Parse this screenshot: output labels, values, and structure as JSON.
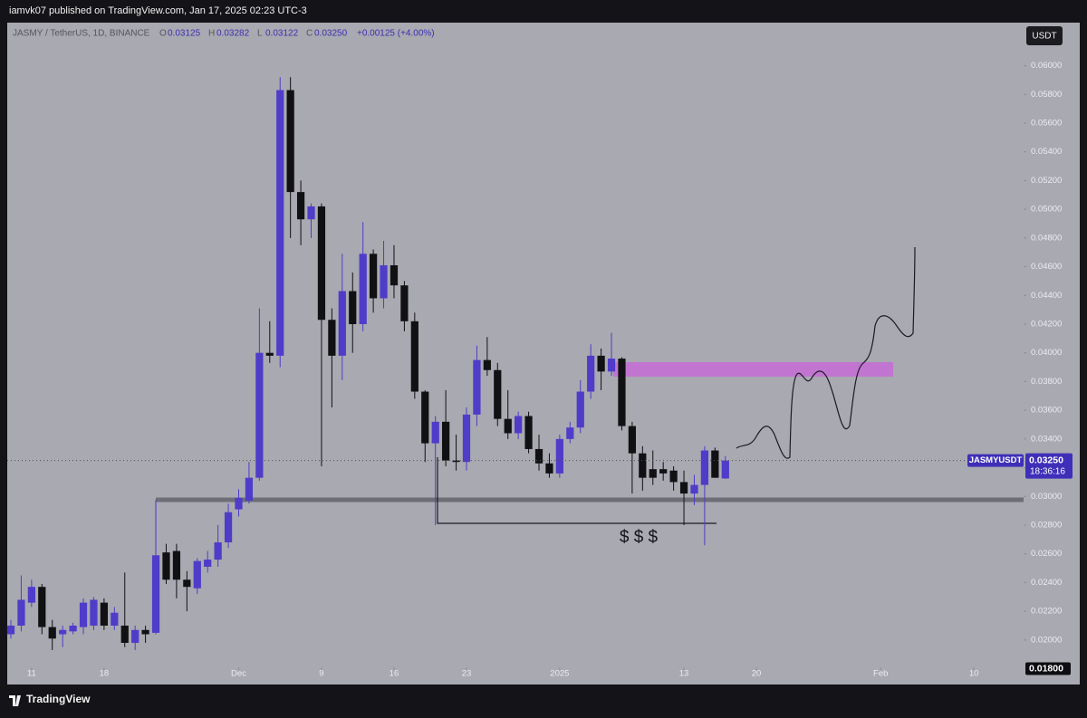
{
  "header": {
    "text": "iamvk07 published on TradingView.com, Jan 17, 2025 02:23 UTC-3"
  },
  "footer": {
    "brand": "TradingView"
  },
  "chart_data": {
    "type": "candlestick",
    "legend": {
      "symbol": "JASMY / TetherUS, 1D, BINANCE",
      "labels": [
        "O",
        "H",
        "L",
        "C"
      ],
      "change": "+0.00125 (+4.00%)"
    },
    "currency_button": "USDT",
    "last_price": {
      "value": 0.0325,
      "label": "0.03250",
      "symbol": "JASMYUSDT",
      "countdown": "18:36:16"
    },
    "price_marker": {
      "value": 0.018,
      "label": "0.01800"
    },
    "annotation": "$ $ $",
    "up_color": "#4f3cc9",
    "down_color": "#111114",
    "ylim": [
      0.0169,
      0.063
    ],
    "xlim": [
      -1.05,
      97.8
    ],
    "yticks": [
      {
        "value": 0.02,
        "label": "0.02000"
      },
      {
        "value": 0.022,
        "label": "0.02200"
      },
      {
        "value": 0.024,
        "label": "0.02400"
      },
      {
        "value": 0.026,
        "label": "0.02600"
      },
      {
        "value": 0.028,
        "label": "0.02800"
      },
      {
        "value": 0.03,
        "label": "0.03000"
      },
      {
        "value": 0.032,
        "label": "0.03200"
      },
      {
        "value": 0.034,
        "label": "0.03400"
      },
      {
        "value": 0.036,
        "label": "0.03600"
      },
      {
        "value": 0.038,
        "label": "0.03800"
      },
      {
        "value": 0.04,
        "label": "0.04000"
      },
      {
        "value": 0.042,
        "label": "0.04200"
      },
      {
        "value": 0.044,
        "label": "0.04400"
      },
      {
        "value": 0.046,
        "label": "0.04600"
      },
      {
        "value": 0.048,
        "label": "0.04800"
      },
      {
        "value": 0.05,
        "label": "0.05000"
      },
      {
        "value": 0.052,
        "label": "0.05200"
      },
      {
        "value": 0.054,
        "label": "0.05400"
      },
      {
        "value": 0.056,
        "label": "0.05600"
      },
      {
        "value": 0.058,
        "label": "0.05800"
      },
      {
        "value": 0.06,
        "label": "0.06000"
      }
    ],
    "xticks": [
      {
        "value": 2,
        "label": "11"
      },
      {
        "value": 9,
        "label": "18"
      },
      {
        "value": 22,
        "label": "Dec"
      },
      {
        "value": 30,
        "label": "9"
      },
      {
        "value": 37,
        "label": "16"
      },
      {
        "value": 44,
        "label": "23"
      },
      {
        "value": 53,
        "label": "2025"
      },
      {
        "value": 65,
        "label": "13"
      },
      {
        "value": 72,
        "label": "20"
      },
      {
        "value": 84,
        "label": "Feb"
      },
      {
        "value": 93,
        "label": "10"
      }
    ],
    "candles": [
      {
        "open": 0.0204,
        "high": 0.0214,
        "low": 0.0201,
        "close": 0.021
      },
      {
        "open": 0.021,
        "high": 0.0245,
        "low": 0.0206,
        "close": 0.0228
      },
      {
        "open": 0.0226,
        "high": 0.0242,
        "low": 0.0223,
        "close": 0.0237
      },
      {
        "open": 0.0237,
        "high": 0.0239,
        "low": 0.0204,
        "close": 0.0209
      },
      {
        "open": 0.0209,
        "high": 0.0214,
        "low": 0.0193,
        "close": 0.0201
      },
      {
        "open": 0.0204,
        "high": 0.021,
        "low": 0.0195,
        "close": 0.0207
      },
      {
        "open": 0.0206,
        "high": 0.0212,
        "low": 0.0204,
        "close": 0.021
      },
      {
        "open": 0.0209,
        "high": 0.0229,
        "low": 0.0204,
        "close": 0.0226
      },
      {
        "open": 0.021,
        "high": 0.023,
        "low": 0.0207,
        "close": 0.0228
      },
      {
        "open": 0.0226,
        "high": 0.0229,
        "low": 0.0207,
        "close": 0.021
      },
      {
        "open": 0.021,
        "high": 0.0223,
        "low": 0.0207,
        "close": 0.0219
      },
      {
        "open": 0.021,
        "high": 0.0247,
        "low": 0.0195,
        "close": 0.0198
      },
      {
        "open": 0.0198,
        "high": 0.021,
        "low": 0.0193,
        "close": 0.0207
      },
      {
        "open": 0.0207,
        "high": 0.021,
        "low": 0.0198,
        "close": 0.0204
      },
      {
        "open": 0.0205,
        "high": 0.0295,
        "low": 0.0204,
        "close": 0.0259
      },
      {
        "open": 0.0261,
        "high": 0.0267,
        "low": 0.0239,
        "close": 0.0242
      },
      {
        "open": 0.0262,
        "high": 0.0267,
        "low": 0.0229,
        "close": 0.0242
      },
      {
        "open": 0.0242,
        "high": 0.0248,
        "low": 0.022,
        "close": 0.0237
      },
      {
        "open": 0.0236,
        "high": 0.0257,
        "low": 0.0232,
        "close": 0.0255
      },
      {
        "open": 0.0251,
        "high": 0.0262,
        "low": 0.0247,
        "close": 0.0256
      },
      {
        "open": 0.0256,
        "high": 0.028,
        "low": 0.0251,
        "close": 0.0268
      },
      {
        "open": 0.0268,
        "high": 0.0295,
        "low": 0.0264,
        "close": 0.0289
      },
      {
        "open": 0.0291,
        "high": 0.0305,
        "low": 0.0286,
        "close": 0.0299
      },
      {
        "open": 0.0297,
        "high": 0.0324,
        "low": 0.0295,
        "close": 0.0313
      },
      {
        "open": 0.0313,
        "high": 0.0431,
        "low": 0.0311,
        "close": 0.04
      },
      {
        "open": 0.04,
        "high": 0.0422,
        "low": 0.0393,
        "close": 0.0398
      },
      {
        "open": 0.0398,
        "high": 0.0592,
        "low": 0.039,
        "close": 0.0583
      },
      {
        "open": 0.0583,
        "high": 0.0592,
        "low": 0.048,
        "close": 0.0512
      },
      {
        "open": 0.0512,
        "high": 0.052,
        "low": 0.0475,
        "close": 0.0493
      },
      {
        "open": 0.0493,
        "high": 0.0504,
        "low": 0.048,
        "close": 0.0502
      },
      {
        "open": 0.0502,
        "high": 0.0504,
        "low": 0.0321,
        "close": 0.0423
      },
      {
        "open": 0.0423,
        "high": 0.0431,
        "low": 0.0362,
        "close": 0.0398
      },
      {
        "open": 0.0398,
        "high": 0.0469,
        "low": 0.0381,
        "close": 0.0443
      },
      {
        "open": 0.0443,
        "high": 0.0456,
        "low": 0.04,
        "close": 0.042
      },
      {
        "open": 0.042,
        "high": 0.0491,
        "low": 0.0415,
        "close": 0.0469
      },
      {
        "open": 0.0469,
        "high": 0.0472,
        "low": 0.0428,
        "close": 0.0438
      },
      {
        "open": 0.0438,
        "high": 0.0478,
        "low": 0.0431,
        "close": 0.0461
      },
      {
        "open": 0.0461,
        "high": 0.0475,
        "low": 0.0438,
        "close": 0.0447
      },
      {
        "open": 0.0447,
        "high": 0.045,
        "low": 0.0415,
        "close": 0.0422
      },
      {
        "open": 0.0422,
        "high": 0.0428,
        "low": 0.0368,
        "close": 0.0373
      },
      {
        "open": 0.0373,
        "high": 0.0374,
        "low": 0.0324,
        "close": 0.0337
      },
      {
        "open": 0.0337,
        "high": 0.0356,
        "low": 0.028,
        "close": 0.0352
      },
      {
        "open": 0.0352,
        "high": 0.0374,
        "low": 0.0321,
        "close": 0.0325
      },
      {
        "open": 0.0325,
        "high": 0.0343,
        "low": 0.0318,
        "close": 0.0324
      },
      {
        "open": 0.0324,
        "high": 0.0362,
        "low": 0.0318,
        "close": 0.0357
      },
      {
        "open": 0.0357,
        "high": 0.0405,
        "low": 0.0349,
        "close": 0.0395
      },
      {
        "open": 0.0395,
        "high": 0.0411,
        "low": 0.0384,
        "close": 0.0388
      },
      {
        "open": 0.0388,
        "high": 0.0393,
        "low": 0.0349,
        "close": 0.0354
      },
      {
        "open": 0.0354,
        "high": 0.0374,
        "low": 0.034,
        "close": 0.0344
      },
      {
        "open": 0.0344,
        "high": 0.0359,
        "low": 0.034,
        "close": 0.0356
      },
      {
        "open": 0.0356,
        "high": 0.0359,
        "low": 0.033,
        "close": 0.0333
      },
      {
        "open": 0.0333,
        "high": 0.0343,
        "low": 0.0318,
        "close": 0.0323
      },
      {
        "open": 0.0323,
        "high": 0.033,
        "low": 0.0313,
        "close": 0.0316
      },
      {
        "open": 0.0316,
        "high": 0.0343,
        "low": 0.0313,
        "close": 0.034
      },
      {
        "open": 0.034,
        "high": 0.0352,
        "low": 0.0337,
        "close": 0.0348
      },
      {
        "open": 0.0348,
        "high": 0.0381,
        "low": 0.0344,
        "close": 0.0373
      },
      {
        "open": 0.0373,
        "high": 0.0406,
        "low": 0.0368,
        "close": 0.0398
      },
      {
        "open": 0.0398,
        "high": 0.0403,
        "low": 0.0374,
        "close": 0.0387
      },
      {
        "open": 0.0387,
        "high": 0.0414,
        "low": 0.0384,
        "close": 0.0396
      },
      {
        "open": 0.0396,
        "high": 0.0397,
        "low": 0.0346,
        "close": 0.0349
      },
      {
        "open": 0.0349,
        "high": 0.0352,
        "low": 0.0302,
        "close": 0.033
      },
      {
        "open": 0.033,
        "high": 0.0335,
        "low": 0.0304,
        "close": 0.0313
      },
      {
        "open": 0.0319,
        "high": 0.0332,
        "low": 0.0308,
        "close": 0.0313
      },
      {
        "open": 0.0319,
        "high": 0.0324,
        "low": 0.0311,
        "close": 0.0316
      },
      {
        "open": 0.0318,
        "high": 0.0321,
        "low": 0.0304,
        "close": 0.031
      },
      {
        "open": 0.031,
        "high": 0.0318,
        "low": 0.028,
        "close": 0.0302
      },
      {
        "open": 0.0302,
        "high": 0.0315,
        "low": 0.0294,
        "close": 0.0308
      },
      {
        "open": 0.0308,
        "high": 0.0335,
        "low": 0.0266,
        "close": 0.0332
      },
      {
        "open": 0.0332,
        "high": 0.0334,
        "low": 0.0313,
        "close": 0.0313
      },
      {
        "open": 0.03125,
        "high": 0.03282,
        "low": 0.03122,
        "close": 0.0325
      }
    ]
  }
}
